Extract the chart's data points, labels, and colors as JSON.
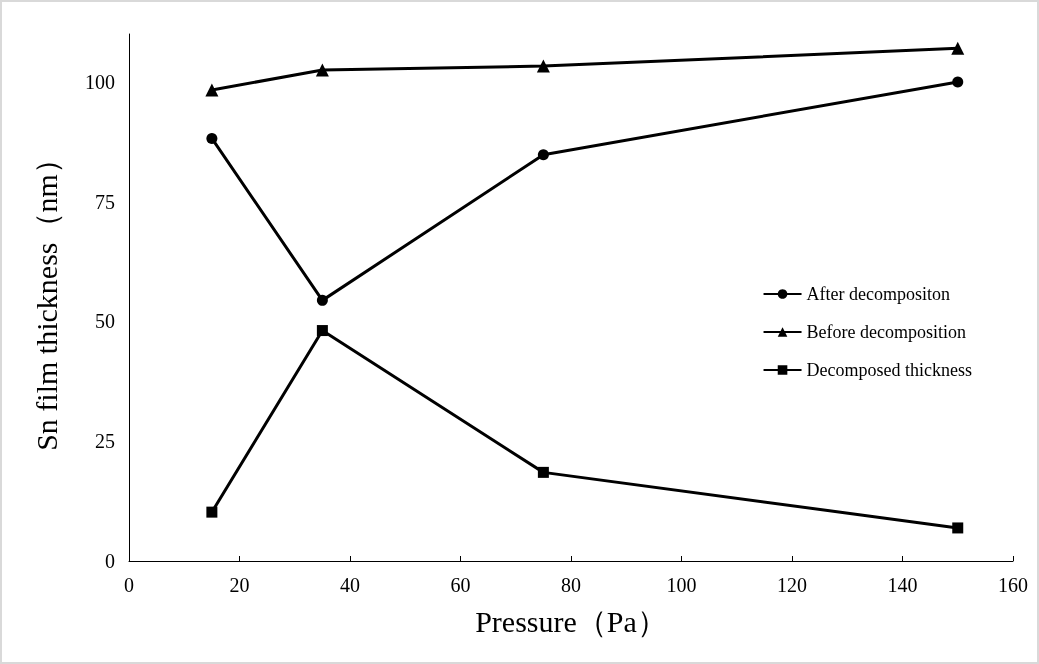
{
  "chart_data": {
    "type": "line",
    "xlabel": "Pressure（Pa）",
    "ylabel": "Sn film thickness（nm）",
    "x": [
      15,
      35,
      75,
      150
    ],
    "series": [
      {
        "name": "After decompositon",
        "color": "#000000",
        "marker": "circle",
        "values": [
          88.2,
          54.4,
          84.8,
          100
        ]
      },
      {
        "name": "Before decomposition",
        "color": "#000000",
        "marker": "triangle",
        "values": [
          98.3,
          102.5,
          103.3,
          107
        ]
      },
      {
        "name": "Decomposed thickness",
        "color": "#000000",
        "marker": "square",
        "values": [
          10.2,
          48.1,
          18.5,
          6.9
        ]
      }
    ],
    "xlim": [
      0,
      160
    ],
    "xticks": [
      0,
      20,
      40,
      60,
      80,
      100,
      120,
      140,
      160
    ],
    "ylim": [
      0,
      110
    ],
    "yticks": [
      0,
      25,
      50,
      75,
      100
    ],
    "grid": false,
    "legend": "right",
    "line_style": "solid"
  }
}
